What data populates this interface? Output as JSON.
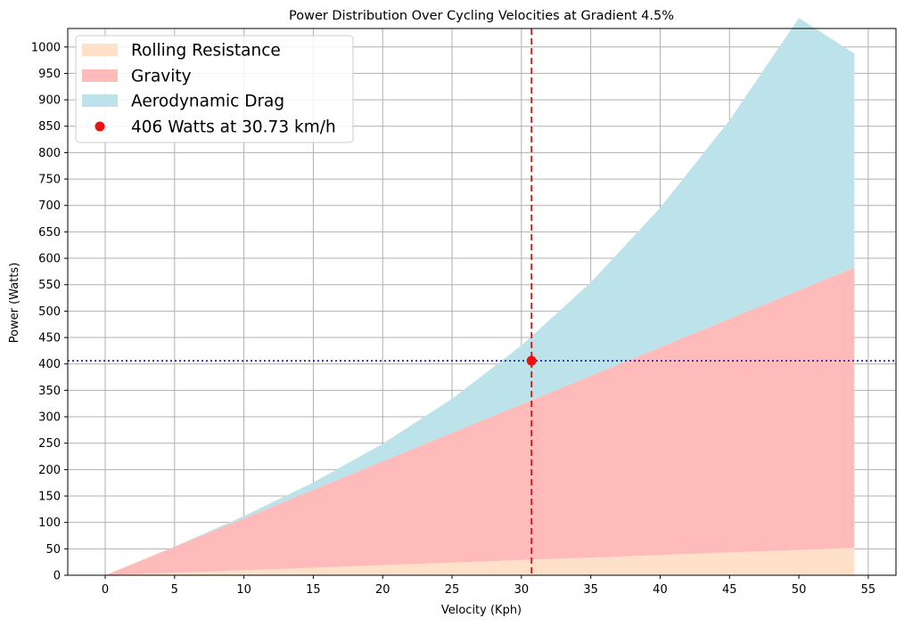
{
  "chart_data": {
    "type": "area",
    "title": "Power Distribution Over Cycling Velocities at Gradient 4.5%",
    "xlabel": "Velocity (Kph)",
    "ylabel": "Power (Watts)",
    "xlim": [
      -2.7,
      57.0
    ],
    "ylim": [
      0,
      1035
    ],
    "x_ticks": [
      0,
      5,
      10,
      15,
      20,
      25,
      30,
      35,
      40,
      45,
      50,
      55
    ],
    "y_ticks": [
      0,
      50,
      100,
      150,
      200,
      250,
      300,
      350,
      400,
      450,
      500,
      550,
      600,
      650,
      700,
      750,
      800,
      850,
      900,
      950,
      1000
    ],
    "grid": true,
    "stacked": true,
    "legend_position": "top-left",
    "x": [
      0,
      5,
      10,
      15,
      20,
      25,
      30,
      35,
      40,
      45,
      50,
      54
    ],
    "series": [
      {
        "name": "Rolling Resistance",
        "color": "#ffe0c8",
        "values": [
          0,
          4.8,
          9.6,
          14.4,
          19.2,
          24.0,
          28.8,
          33.6,
          38.4,
          43.2,
          48.0,
          51.8
        ]
      },
      {
        "name": "Gravity",
        "color": "#ffbaba",
        "values": [
          0,
          49.1,
          98.3,
          147.4,
          196.6,
          245.7,
          294.9,
          344.0,
          393.2,
          442.3,
          491.5,
          530.8
        ]
      },
      {
        "name": "Aerodynamic Drag",
        "color": "#bde3ea",
        "values": [
          0,
          0.5,
          4.1,
          13.9,
          33.0,
          64.4,
          111.3,
          176.8,
          263.9,
          375.8,
          515.5,
          405.0
        ]
      }
    ],
    "marker": {
      "label": "406 Watts at 30.73 km/h",
      "x": 30.73,
      "y": 406,
      "color": "#ee1111"
    },
    "vline": {
      "x": 30.73,
      "color": "#dd1111",
      "style": "dashed"
    },
    "hline": {
      "y": 406,
      "color": "#1111cc",
      "style": "dotted"
    }
  }
}
